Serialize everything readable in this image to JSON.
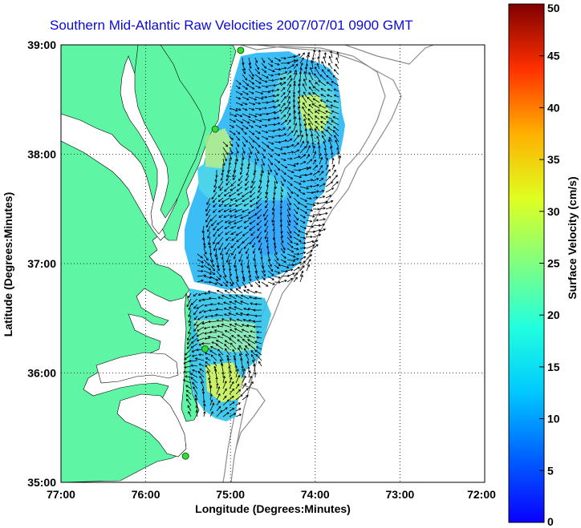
{
  "title": "Southern Mid-Atlantic Raw Velocities 2007/07/01 0900 GMT",
  "axes": {
    "xlabel": "Longitude (Degrees:Minutes)",
    "ylabel": "Latitude (Degrees:Minutes)",
    "xticks": [
      "77:00",
      "76:00",
      "75:00",
      "74:00",
      "73:00",
      "72:00"
    ],
    "yticks": [
      "39:00",
      "38:00",
      "37:00",
      "36:00",
      "35:00"
    ]
  },
  "colorbar": {
    "label": "Surface Velocity (cm/s)",
    "ticks": [
      "0",
      "5",
      "10",
      "15",
      "20",
      "25",
      "30",
      "35",
      "40",
      "45",
      "50"
    ],
    "min": 0,
    "max": 50,
    "colormap": "jet"
  },
  "map": {
    "lon_range": [
      -77,
      -72
    ],
    "lat_range": [
      35,
      39
    ],
    "land_color": "#5ef5a5",
    "bathymetry_color": "#8c8c8c",
    "arrow_color": "#000000",
    "grid": "dotted",
    "stations": [
      {
        "lon": -74.88,
        "lat": 38.95
      },
      {
        "lon": -75.18,
        "lat": 38.23
      },
      {
        "lon": -75.3,
        "lat": 36.22
      },
      {
        "lon": -75.53,
        "lat": 35.24
      }
    ]
  }
}
